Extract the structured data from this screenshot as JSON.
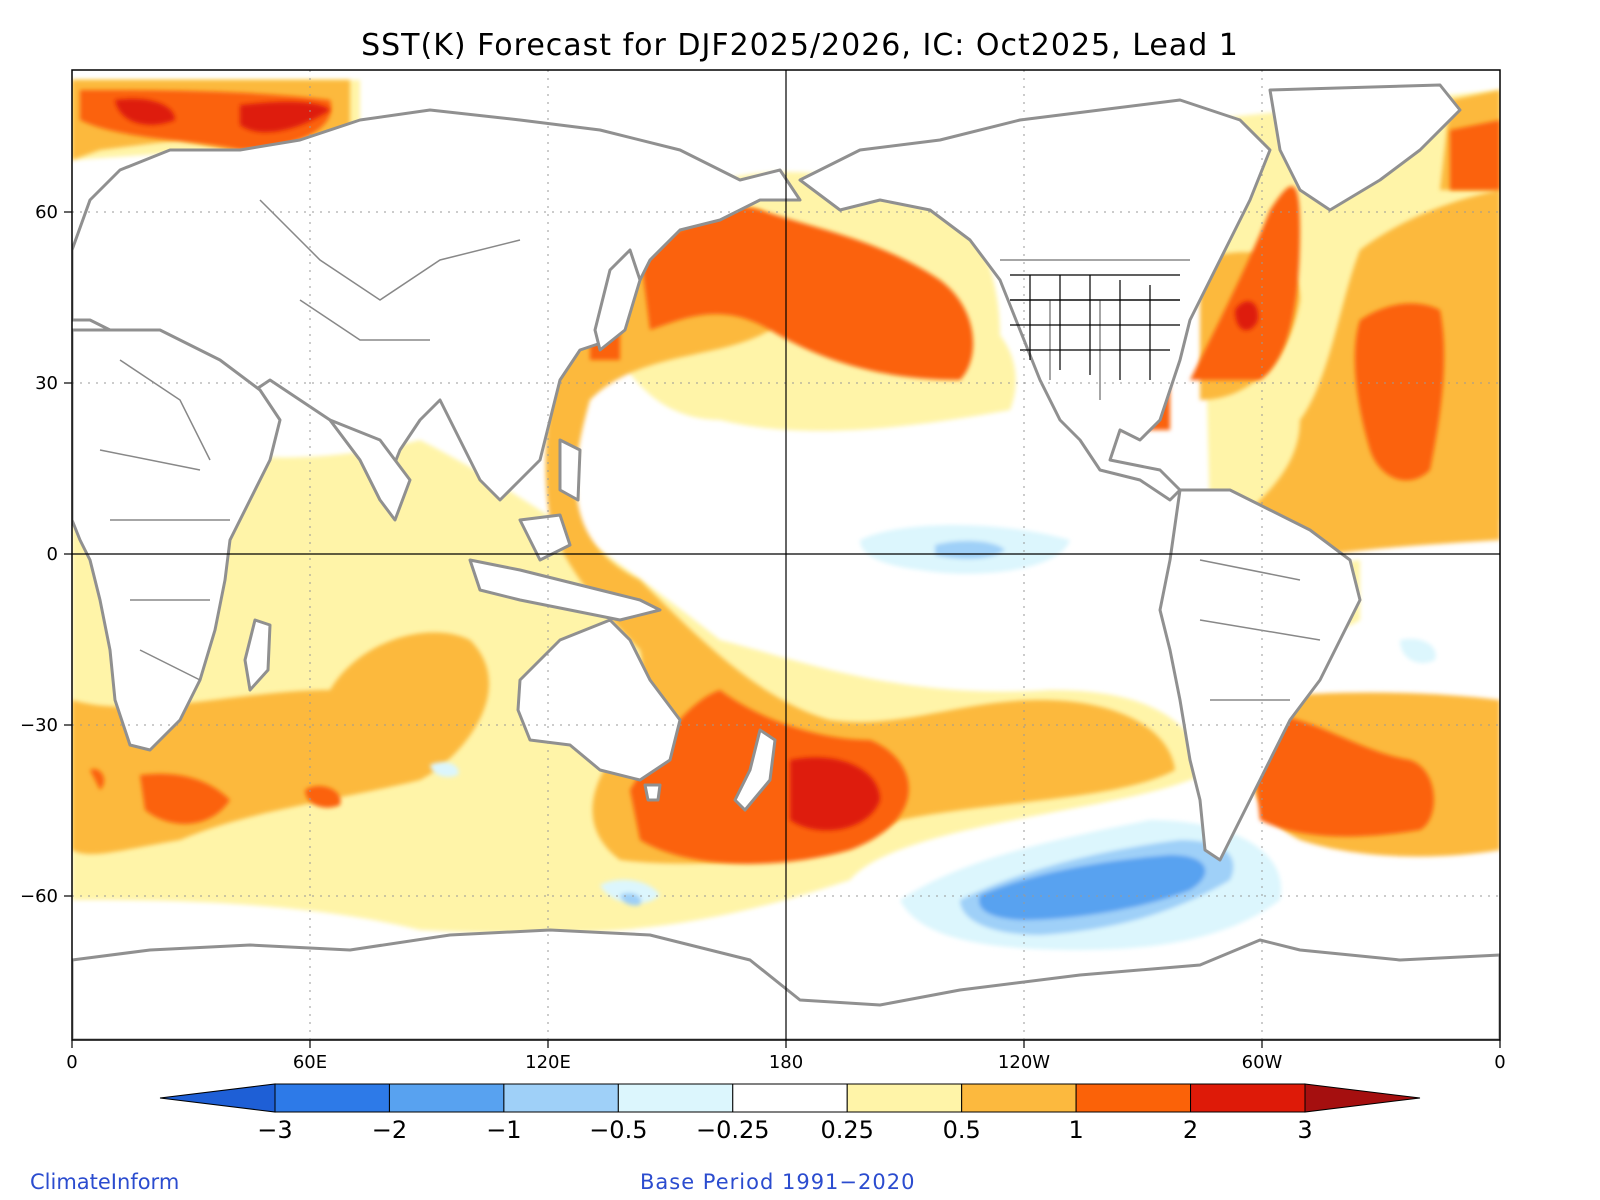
{
  "title": "SST(K) Forecast for DJF2025/2026, IC: Oct2025, Lead 1",
  "map": {
    "lon_ticks": [
      "0",
      "60E",
      "120E",
      "180",
      "120W",
      "60W",
      "0"
    ],
    "lat_ticks": [
      "60",
      "30",
      "0",
      "−30",
      "−60"
    ],
    "lon_range": [
      0,
      360
    ],
    "lat_range": [
      -85,
      85
    ]
  },
  "legend": {
    "labels": [
      "−3",
      "−2",
      "−1",
      "−0.5",
      "−0.25",
      "0.25",
      "0.5",
      "1",
      "2",
      "3"
    ],
    "colors": [
      "#1e5fd6",
      "#2d7ae8",
      "#58a2f0",
      "#9fd0f8",
      "#dcf6fd",
      "#ffffff",
      "#fff4a8",
      "#fcb93e",
      "#fb6208",
      "#de1a08",
      "#a50f0f"
    ]
  },
  "footer": {
    "left": "ClimateInform",
    "base": "Base Period 1991−2020"
  },
  "palette": {
    "ocean_white": "#ffffff",
    "coast": "#909090",
    "border": "#888888",
    "text_blue": "#2b4ccf"
  }
}
